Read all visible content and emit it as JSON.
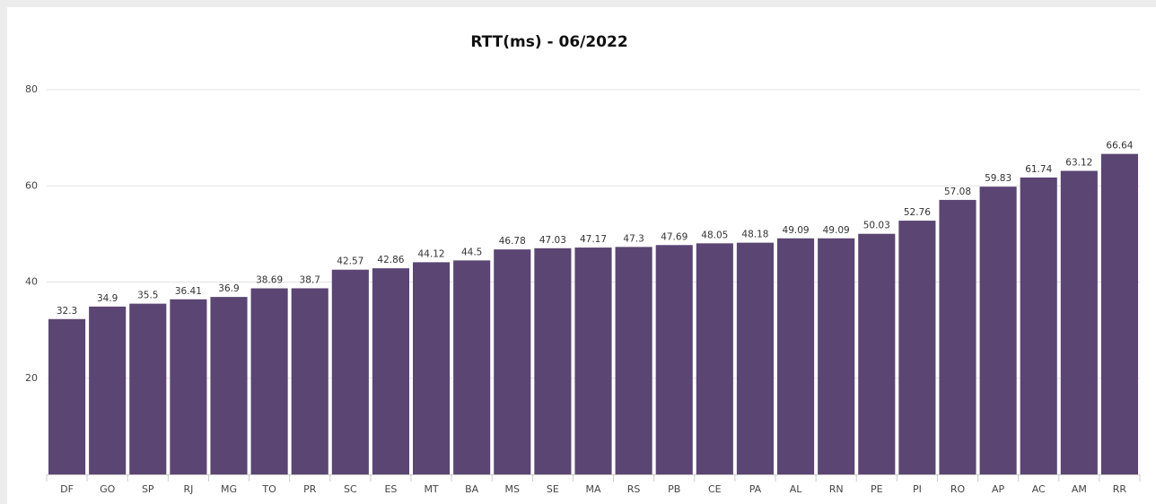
{
  "chart_data": {
    "type": "bar",
    "title": "RTT(ms) - 06/2022",
    "categories": [
      "DF",
      "GO",
      "SP",
      "RJ",
      "MG",
      "TO",
      "PR",
      "SC",
      "ES",
      "MT",
      "BA",
      "MS",
      "SE",
      "MA",
      "RS",
      "PB",
      "CE",
      "PA",
      "AL",
      "RN",
      "PE",
      "PI",
      "RO",
      "AP",
      "AC",
      "AM",
      "RR"
    ],
    "values": [
      32.3,
      34.9,
      35.5,
      36.41,
      36.9,
      38.69,
      38.7,
      42.57,
      42.86,
      44.12,
      44.5,
      46.78,
      47.03,
      47.17,
      47.3,
      47.69,
      48.05,
      48.18,
      49.09,
      49.09,
      50.03,
      52.76,
      57.08,
      59.83,
      61.74,
      63.12,
      66.64
    ],
    "color": "#5b4573",
    "ylim": [
      0,
      80
    ],
    "yticks": [
      20,
      40,
      60,
      80
    ],
    "grid": true
  }
}
